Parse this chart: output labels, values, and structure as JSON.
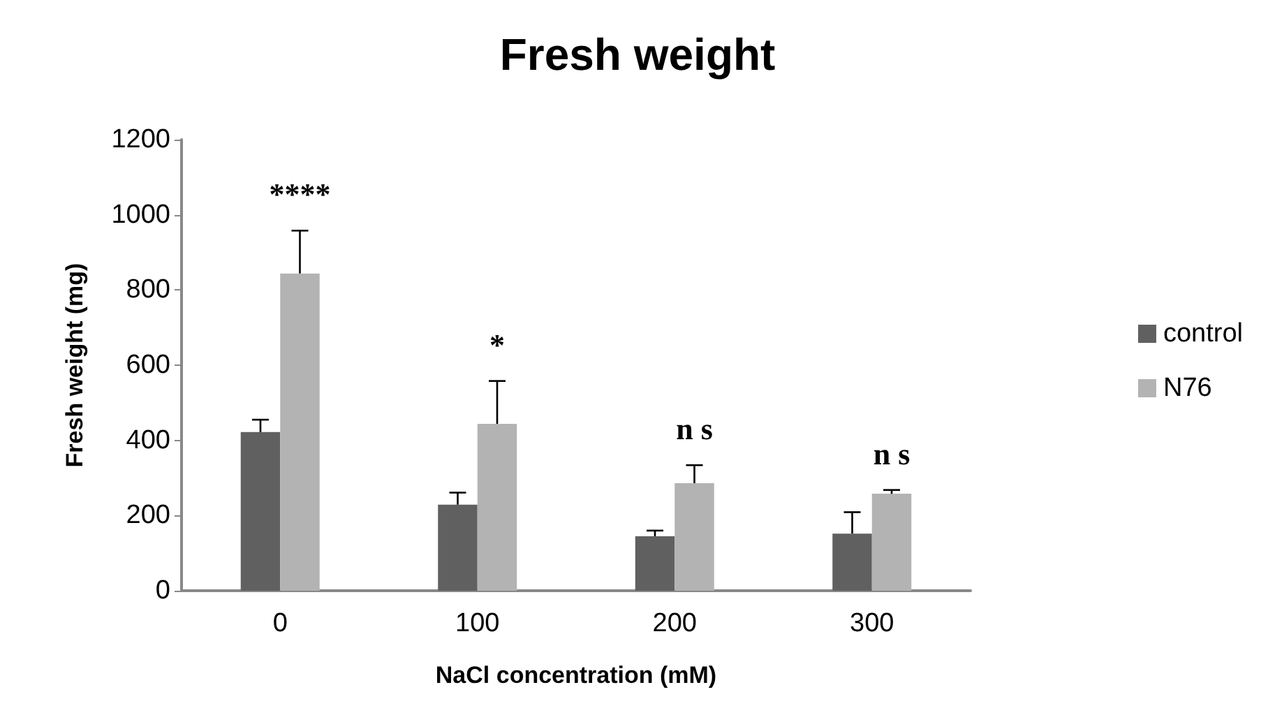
{
  "chart_data": {
    "type": "bar",
    "title": "Fresh weight",
    "xlabel": "NaCl concentration (mM)",
    "ylabel": "Fresh weight (mg)",
    "categories": [
      "0",
      "100",
      "200",
      "300"
    ],
    "series": [
      {
        "name": "control",
        "color": "#606060",
        "values": [
          422,
          229,
          145,
          152
        ],
        "errors": [
          33,
          32,
          15,
          57
        ]
      },
      {
        "name": "N76",
        "color": "#b3b3b3",
        "values": [
          844,
          444,
          286,
          258
        ],
        "errors": [
          114,
          114,
          48,
          10
        ]
      }
    ],
    "ylim": [
      0,
      1200
    ],
    "yticks": [
      0,
      200,
      400,
      600,
      800,
      1000,
      1200
    ],
    "grid": false,
    "legend": "right",
    "annotations": [
      "****",
      "*",
      "n s",
      "n s"
    ]
  }
}
